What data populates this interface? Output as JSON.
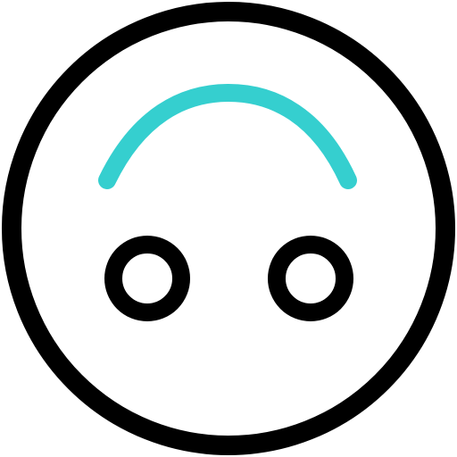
{
  "icon": {
    "name": "upside-down-face-icon",
    "colors": {
      "outline": "#000000",
      "accent": "#35CFCF",
      "background": "#FFFFFF"
    }
  }
}
